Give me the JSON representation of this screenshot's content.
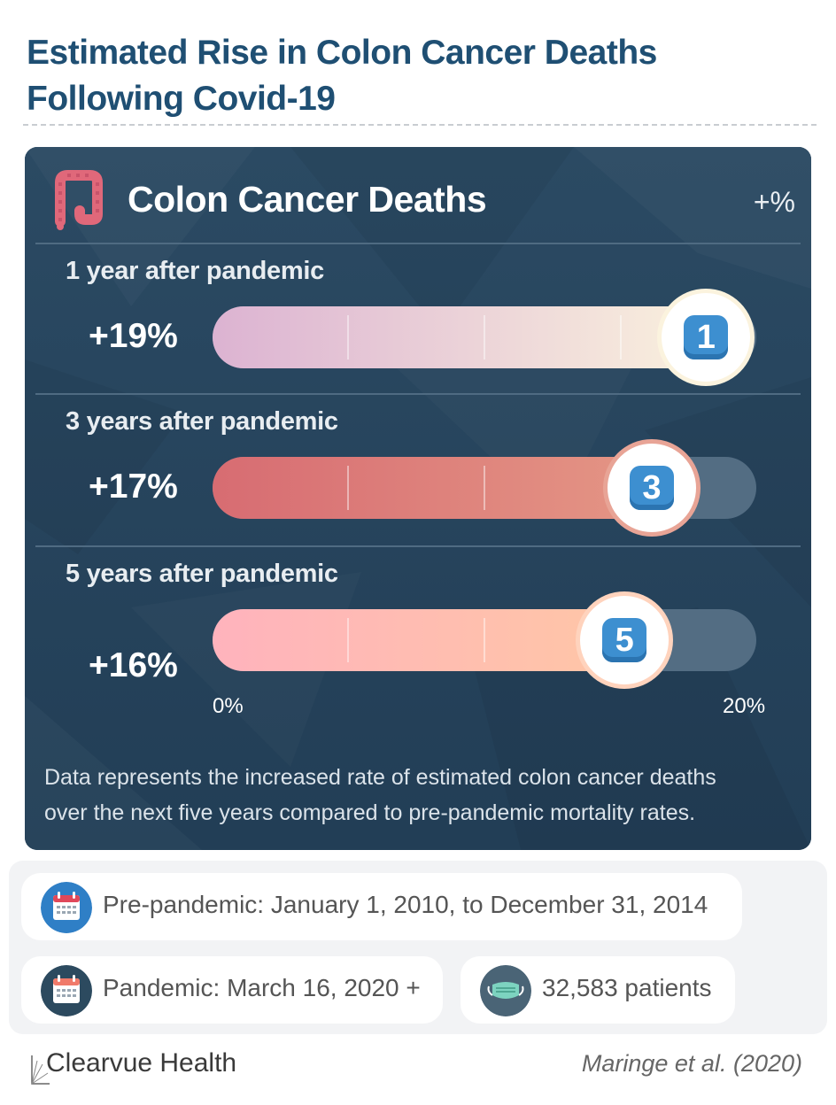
{
  "title_line1": "Estimated Rise in Colon Cancer Deaths",
  "title_line2": "Following Covid-19",
  "card": {
    "title": "Colon Cancer Deaths",
    "unit": "+%",
    "icon": "colon-icon",
    "note_line1": "Data represents the increased rate of estimated colon cancer deaths",
    "note_line2": "over the next five years compared to pre-pandemic mortality rates."
  },
  "chart_data": {
    "type": "bar",
    "orientation": "horizontal",
    "categories": [
      "1 year after pandemic",
      "3 years after pandemic",
      "5 years after pandemic"
    ],
    "values": [
      19,
      17,
      16
    ],
    "value_labels": [
      "+19%",
      "+17%",
      "+16%"
    ],
    "badges": [
      "1",
      "3",
      "5"
    ],
    "xlim": [
      0,
      20
    ],
    "x_tick_labels": [
      "0%",
      "20%"
    ],
    "colors": [
      "#dcb3d2",
      "#d76c72",
      "#ffb3bd"
    ],
    "colors_end": [
      "#fbf3de",
      "#e59886",
      "#ffc7a5"
    ],
    "badge_ring_colors": [
      "#fbf3de",
      "#e8a496",
      "#ffd3bd"
    ]
  },
  "info": {
    "pre_pandemic": "Pre-pandemic: January 1, 2010, to December 31, 2014",
    "pandemic": "Pandemic: March 16, 2020 +",
    "patients": "32,583 patients",
    "icons": [
      "calendar-icon",
      "calendar-icon",
      "face-mask-icon"
    ]
  },
  "brand": "Clearvue Health",
  "source": "Maringe et al. (2020)"
}
